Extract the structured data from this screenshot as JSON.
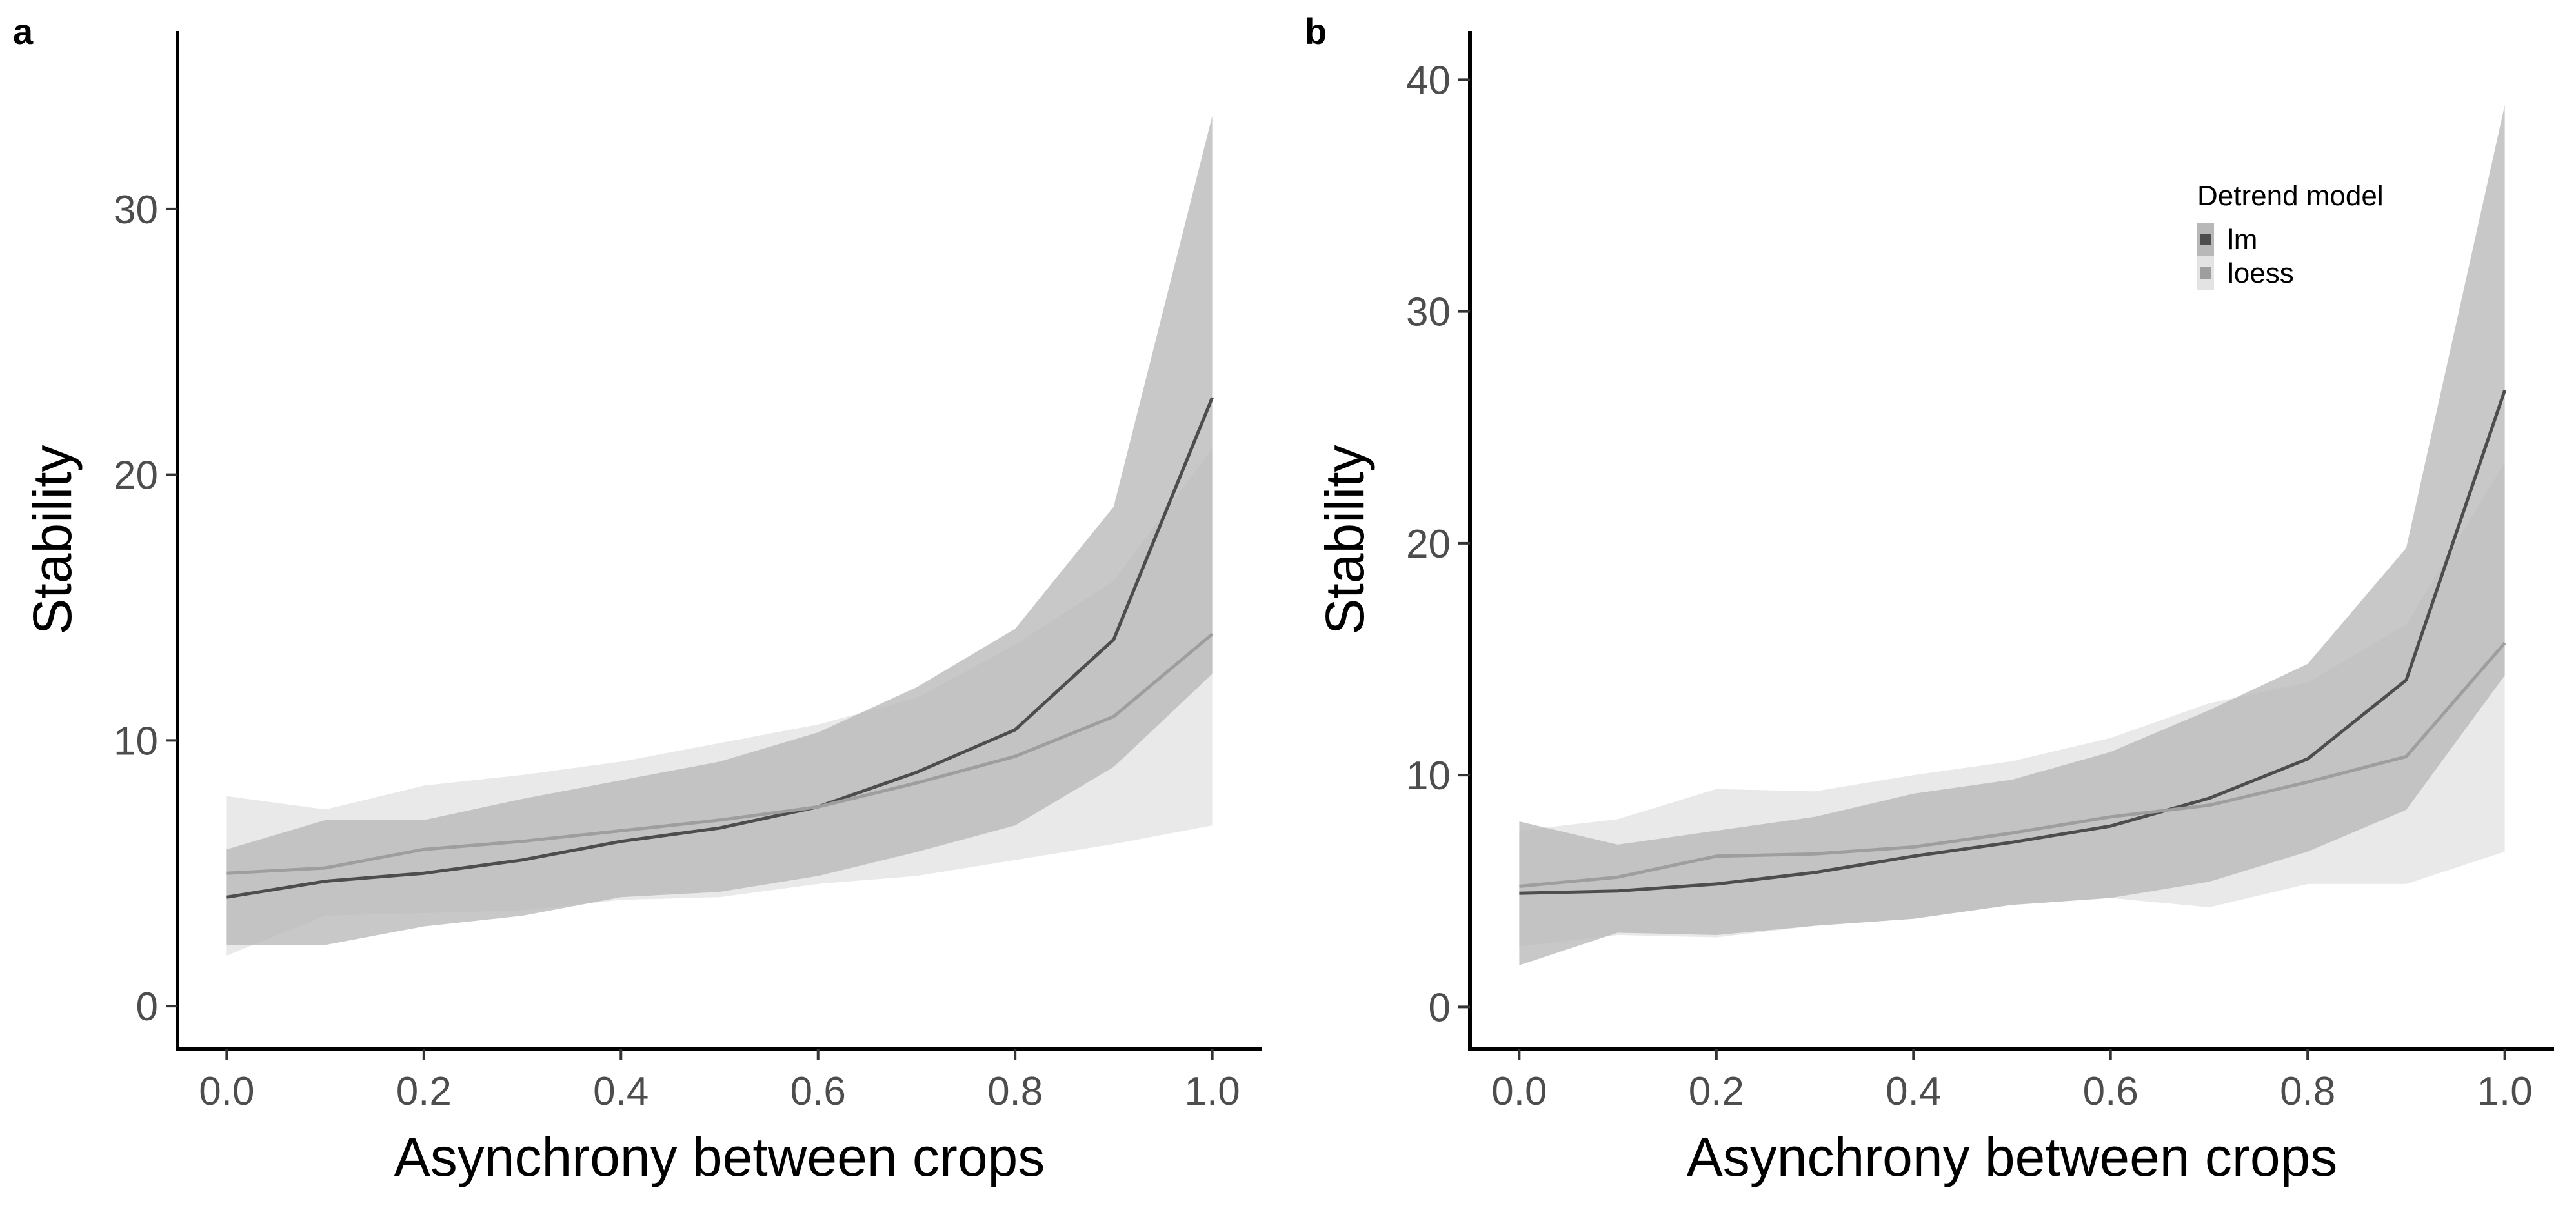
{
  "chart_data": [
    {
      "panel_label": "a",
      "type": "line",
      "xlabel": "Asynchrony between crops",
      "ylabel": "Stability",
      "xlim": [
        -0.05,
        1.05
      ],
      "ylim": [
        -1.6,
        36.7
      ],
      "xticks": [
        0.0,
        0.2,
        0.4,
        0.6,
        0.8,
        1.0
      ],
      "yticks": [
        0,
        10,
        20,
        30
      ],
      "x": [
        0.0,
        0.1,
        0.2,
        0.3,
        0.4,
        0.5,
        0.6,
        0.7,
        0.8,
        0.9,
        1.0
      ],
      "series": [
        {
          "name": "lm",
          "color": "#4d4d4d",
          "band_color": "#b8b8b8",
          "values": [
            4.1,
            4.7,
            5.0,
            5.5,
            6.2,
            6.7,
            7.5,
            8.8,
            10.4,
            13.8,
            22.9
          ],
          "lower": [
            2.3,
            2.3,
            3.0,
            3.4,
            4.1,
            4.3,
            4.9,
            5.8,
            6.8,
            9.0,
            12.5
          ],
          "upper": [
            5.9,
            7.0,
            7.0,
            7.8,
            8.5,
            9.2,
            10.3,
            12.0,
            14.2,
            18.8,
            33.5
          ]
        },
        {
          "name": "loess",
          "color": "#9e9e9e",
          "band_color": "#e3e3e3",
          "values": [
            5.0,
            5.2,
            5.9,
            6.2,
            6.6,
            7.0,
            7.5,
            8.4,
            9.4,
            10.9,
            14.0
          ],
          "lower": [
            1.9,
            3.4,
            3.5,
            3.6,
            4.0,
            4.1,
            4.6,
            4.9,
            5.5,
            6.1,
            6.8
          ],
          "upper": [
            7.9,
            7.4,
            8.3,
            8.7,
            9.2,
            9.9,
            10.6,
            11.6,
            13.6,
            16.0,
            21.0
          ]
        }
      ]
    },
    {
      "panel_label": "b",
      "type": "line",
      "xlabel": "Asynchrony between crops",
      "ylabel": "Stability",
      "xlim": [
        -0.05,
        1.05
      ],
      "ylim": [
        -1.8,
        42.1
      ],
      "xticks": [
        0.0,
        0.2,
        0.4,
        0.6,
        0.8,
        1.0
      ],
      "yticks": [
        0,
        10,
        20,
        30,
        40
      ],
      "x": [
        0.0,
        0.1,
        0.2,
        0.3,
        0.4,
        0.5,
        0.6,
        0.7,
        0.8,
        0.9,
        1.0
      ],
      "legend": {
        "title": "Detrend model",
        "position": "top-right",
        "entries": [
          "lm",
          "loess"
        ]
      },
      "series": [
        {
          "name": "lm",
          "color": "#4d4d4d",
          "band_color": "#b8b8b8",
          "values": [
            4.9,
            5.0,
            5.3,
            5.8,
            6.5,
            7.1,
            7.8,
            9.0,
            10.7,
            14.1,
            26.6
          ],
          "lower": [
            1.8,
            3.2,
            3.1,
            3.5,
            3.8,
            4.4,
            4.7,
            5.4,
            6.7,
            8.5,
            14.3
          ],
          "upper": [
            8.0,
            7.0,
            7.6,
            8.2,
            9.2,
            9.8,
            11.0,
            12.8,
            14.8,
            19.8,
            38.9
          ]
        },
        {
          "name": "loess",
          "color": "#9e9e9e",
          "band_color": "#e3e3e3",
          "values": [
            5.2,
            5.6,
            6.5,
            6.6,
            6.9,
            7.5,
            8.2,
            8.7,
            9.7,
            10.8,
            15.7
          ],
          "lower": [
            2.6,
            3.1,
            3.0,
            3.5,
            3.8,
            4.4,
            4.7,
            4.3,
            5.3,
            5.3,
            6.7
          ],
          "upper": [
            7.6,
            8.1,
            9.4,
            9.3,
            10.0,
            10.6,
            11.6,
            13.1,
            14.0,
            16.5,
            23.5
          ]
        }
      ]
    }
  ]
}
